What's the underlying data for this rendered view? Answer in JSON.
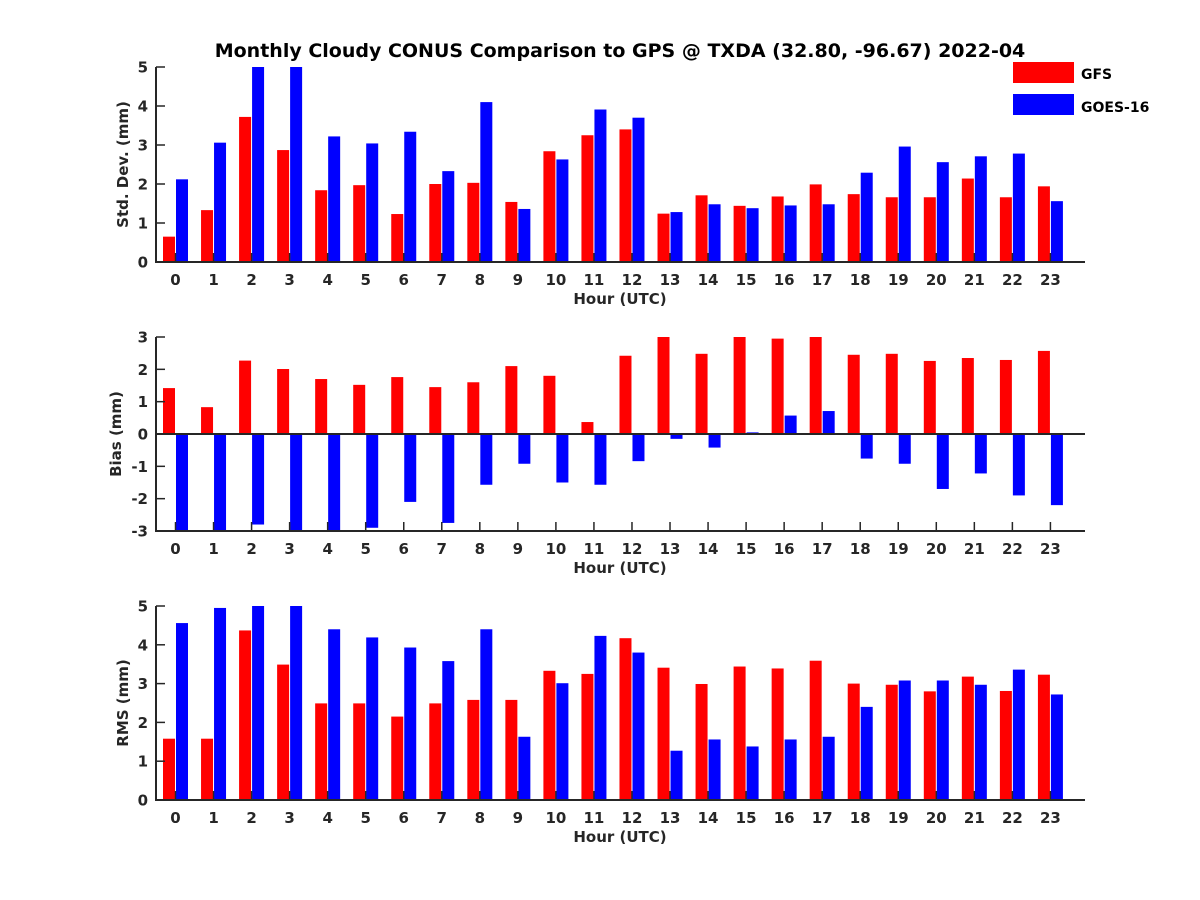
{
  "figure_title": "Monthly Cloudy CONUS Comparison to GPS @ TXDA (32.80, -96.67) 2022-04",
  "legend": [
    {
      "name": "GFS",
      "color": "#ff0000"
    },
    {
      "name": "GOES-16",
      "color": "#0000ff"
    }
  ],
  "chart_data": [
    {
      "type": "bar",
      "title": "Monthly Cloudy CONUS Comparison to GPS @ TXDA (32.80, -96.67) 2022-04",
      "xlabel": "Hour (UTC)",
      "ylabel": "Std. Dev. (mm)",
      "ylim": [
        0,
        5
      ],
      "yticks": [
        "0",
        "1",
        "2",
        "3",
        "4",
        "5"
      ],
      "categories": [
        "0",
        "1",
        "2",
        "3",
        "4",
        "5",
        "6",
        "7",
        "8",
        "9",
        "10",
        "11",
        "12",
        "13",
        "14",
        "15",
        "16",
        "17",
        "18",
        "19",
        "20",
        "21",
        "22",
        "23"
      ],
      "series": [
        {
          "name": "GFS",
          "color": "#ff0000",
          "values": [
            0.65,
            1.33,
            3.72,
            2.87,
            1.84,
            1.97,
            1.23,
            2.0,
            2.03,
            1.54,
            2.84,
            3.25,
            3.4,
            1.24,
            1.71,
            1.44,
            1.68,
            1.99,
            1.74,
            1.66,
            1.66,
            2.14,
            1.66,
            1.94
          ]
        },
        {
          "name": "GOES-16",
          "color": "#0000ff",
          "values": [
            2.12,
            3.06,
            5.0,
            5.0,
            3.22,
            3.04,
            3.34,
            2.33,
            4.1,
            1.36,
            2.63,
            3.91,
            3.7,
            1.28,
            1.48,
            1.38,
            1.45,
            1.48,
            2.29,
            2.96,
            2.56,
            2.71,
            2.78,
            1.56
          ]
        }
      ],
      "legend_position": "top-right",
      "grid": false
    },
    {
      "type": "bar",
      "xlabel": "Hour (UTC)",
      "ylabel": "Bias (mm)",
      "ylim": [
        -3,
        3
      ],
      "yticks": [
        "-3",
        "-2",
        "-1",
        "0",
        "1",
        "2",
        "3"
      ],
      "categories": [
        "0",
        "1",
        "2",
        "3",
        "4",
        "5",
        "6",
        "7",
        "8",
        "9",
        "10",
        "11",
        "12",
        "13",
        "14",
        "15",
        "16",
        "17",
        "18",
        "19",
        "20",
        "21",
        "22",
        "23"
      ],
      "series": [
        {
          "name": "GFS",
          "color": "#ff0000",
          "values": [
            1.42,
            0.83,
            2.27,
            2.01,
            1.7,
            1.52,
            1.76,
            1.45,
            1.6,
            2.1,
            1.8,
            0.37,
            2.42,
            3.0,
            2.48,
            3.0,
            2.95,
            3.0,
            2.45,
            2.48,
            2.26,
            2.35,
            2.29,
            2.57
          ]
        },
        {
          "name": "GOES-16",
          "color": "#0000ff",
          "values": [
            -3.0,
            -3.0,
            -2.8,
            -3.0,
            -3.0,
            -2.9,
            -2.1,
            -2.75,
            -1.57,
            -0.92,
            -1.5,
            -1.57,
            -0.84,
            -0.15,
            -0.42,
            0.05,
            0.57,
            0.71,
            -0.76,
            -0.92,
            -1.7,
            -1.22,
            -1.9,
            -2.2
          ]
        }
      ],
      "grid": false
    },
    {
      "type": "bar",
      "xlabel": "Hour (UTC)",
      "ylabel": "RMS (mm)",
      "ylim": [
        0,
        5
      ],
      "yticks": [
        "0",
        "1",
        "2",
        "3",
        "4",
        "5"
      ],
      "categories": [
        "0",
        "1",
        "2",
        "3",
        "4",
        "5",
        "6",
        "7",
        "8",
        "9",
        "10",
        "11",
        "12",
        "13",
        "14",
        "15",
        "16",
        "17",
        "18",
        "19",
        "20",
        "21",
        "22",
        "23"
      ],
      "series": [
        {
          "name": "GFS",
          "color": "#ff0000",
          "values": [
            1.58,
            1.58,
            4.37,
            3.49,
            2.49,
            2.49,
            2.15,
            2.49,
            2.58,
            2.58,
            3.33,
            3.25,
            4.17,
            3.41,
            2.99,
            3.44,
            3.39,
            3.59,
            3.0,
            2.97,
            2.8,
            3.18,
            2.81,
            3.23
          ]
        },
        {
          "name": "GOES-16",
          "color": "#0000ff",
          "values": [
            4.56,
            4.95,
            5.0,
            5.0,
            4.4,
            4.19,
            3.93,
            3.58,
            4.4,
            1.63,
            3.01,
            4.23,
            3.8,
            1.27,
            1.56,
            1.38,
            1.56,
            1.63,
            2.4,
            3.08,
            3.08,
            2.97,
            3.36,
            2.72
          ]
        }
      ],
      "grid": false
    }
  ]
}
